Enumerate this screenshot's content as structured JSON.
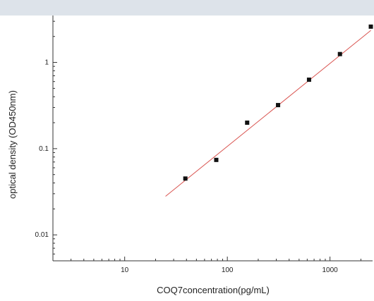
{
  "chart_data": {
    "type": "scatter",
    "title": "",
    "xlabel": "COQ7concentration(pg/mL)",
    "ylabel": "optical density (OD450nm)",
    "x_scale": "log",
    "y_scale": "log",
    "xlim": [
      2,
      2600
    ],
    "ylim": [
      0.005,
      3.5
    ],
    "x_ticks": [
      {
        "value": 10,
        "label": "10"
      },
      {
        "value": 100,
        "label": "100"
      },
      {
        "value": 1000,
        "label": "1000"
      }
    ],
    "y_ticks": [
      {
        "value": 0.01,
        "label": "0.01"
      },
      {
        "value": 0.1,
        "label": "0.1"
      },
      {
        "value": 1,
        "label": "1"
      }
    ],
    "grid": false,
    "points": [
      {
        "x": 39,
        "y": 0.045
      },
      {
        "x": 78,
        "y": 0.074
      },
      {
        "x": 156,
        "y": 0.2
      },
      {
        "x": 312,
        "y": 0.32
      },
      {
        "x": 625,
        "y": 0.63
      },
      {
        "x": 1250,
        "y": 1.25
      },
      {
        "x": 2500,
        "y": 2.6
      }
    ],
    "fit_line": {
      "x": [
        25,
        2500
      ],
      "y": [
        0.028,
        2.35
      ]
    },
    "colors": {
      "points": "#111111",
      "fit_line": "#d9534f",
      "axes": "#333333"
    }
  }
}
